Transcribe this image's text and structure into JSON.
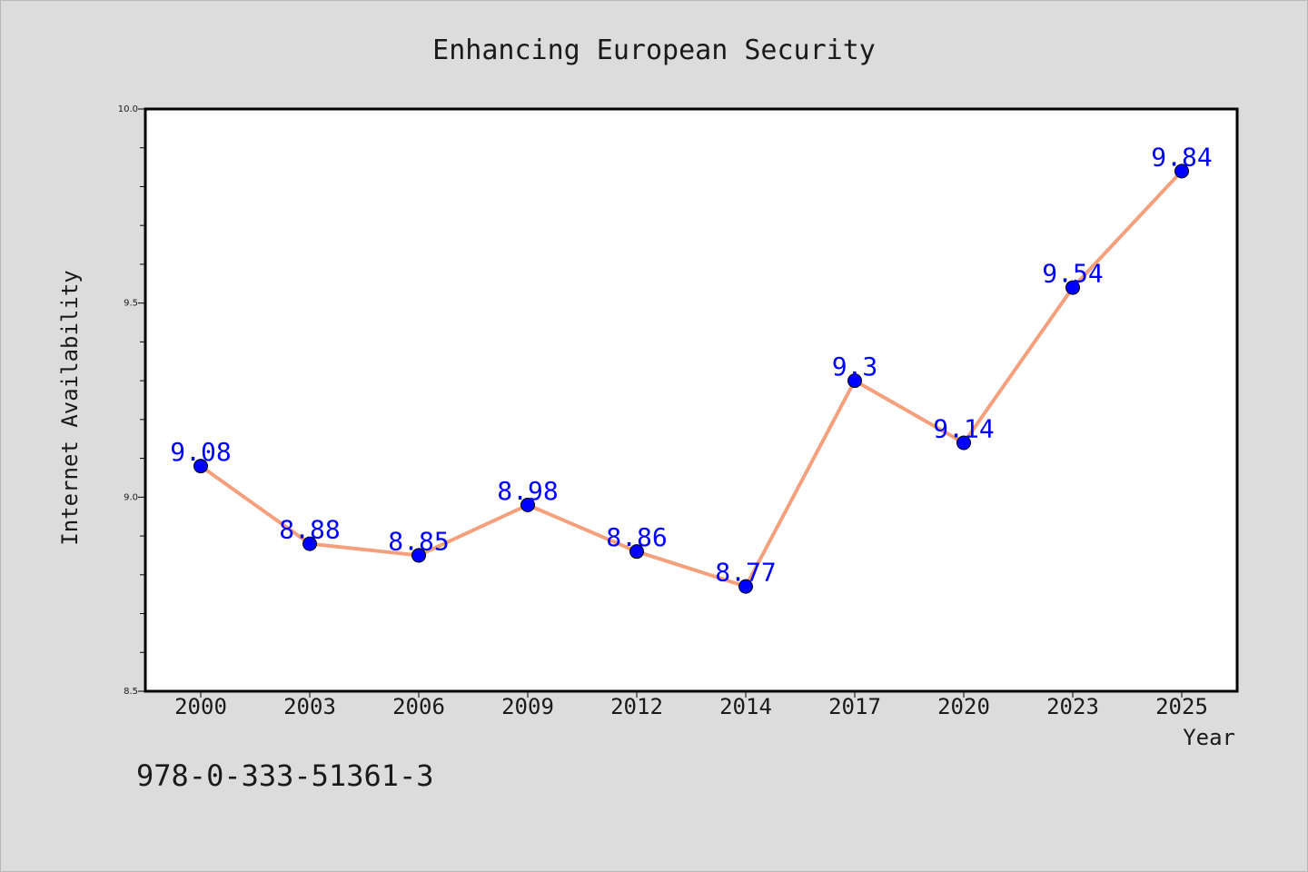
{
  "chart_data": {
    "type": "line",
    "title": "Enhancing European Security",
    "xlabel": "Year",
    "ylabel": "Internet Availability",
    "categories": [
      "2000",
      "2003",
      "2006",
      "2009",
      "2012",
      "2014",
      "2017",
      "2020",
      "2023",
      "2025"
    ],
    "series": [
      {
        "values": [
          9.08,
          8.88,
          8.85,
          8.98,
          8.86,
          8.77,
          9.3,
          9.14,
          9.54,
          9.84
        ],
        "data_labels": [
          "9.08",
          "8.88",
          "8.85",
          "8.98",
          "8.86",
          "8.77",
          "9.3",
          "9.14",
          "9.54",
          "9.84"
        ],
        "line_color": "#f4a07c",
        "marker_color": "#0000ff"
      }
    ],
    "ylim": [
      8.5,
      10.0
    ],
    "yticks": [
      "8.5",
      "9.0",
      "9.5",
      "10.0"
    ],
    "grid": false,
    "legend": "none"
  },
  "footer": {
    "isbn": "978-0-333-51361-3"
  },
  "colors": {
    "background": "#dcdcdc",
    "plot_background": "#ffffff",
    "axes": "#000000",
    "data_label": "#0000ff"
  }
}
